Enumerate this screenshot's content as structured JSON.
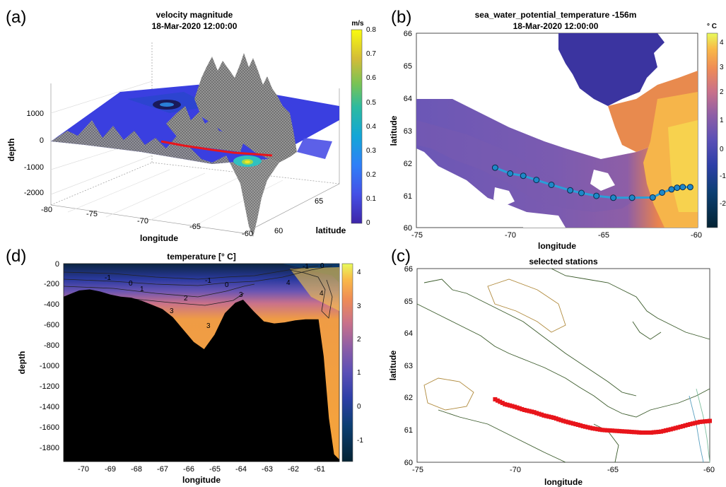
{
  "figure": {
    "background": "#ffffff"
  },
  "colors": {
    "ocean_deep": "#2b2f9e",
    "land": "#ffffff",
    "mesh": "#8c8c8c",
    "section_red": "#e8151b",
    "station_fill": "#1e88c8",
    "station_stroke": "#0b2a4a",
    "bathy": "#000000",
    "contour_land": "#3a5a2a",
    "contour_tan": "#b08a3c"
  },
  "panels": {
    "a": {
      "label": "(a)",
      "title_line1": "velocity magnitude",
      "title_line2": "18-Mar-2020 12:00:00",
      "xlabel": "longitude",
      "ylabel": "latitude",
      "zlabel": "depth",
      "x_ticks": [
        "-80",
        "-75",
        "-70",
        "-65",
        "-60"
      ],
      "y_ticks": [
        "60",
        "65"
      ],
      "z_ticks": [
        "1000",
        "0",
        "-1000",
        "-2000"
      ],
      "colorbar_unit": "m/s",
      "colorbar_ticks": [
        "0.8",
        "0.7",
        "0.6",
        "0.5",
        "0.4",
        "0.3",
        "0.2",
        "0.1",
        "0"
      ]
    },
    "b": {
      "label": "(b)",
      "title_line1": "sea_water_potential_temperature -156m",
      "title_line2": "18-Mar-2020 12:00:00",
      "xlabel": "longitude",
      "ylabel": "latitude",
      "x_ticks": [
        "-75",
        "-70",
        "-65",
        "-60"
      ],
      "y_ticks": [
        "66",
        "65",
        "64",
        "63",
        "62",
        "61",
        "60"
      ],
      "colorbar_unit": "° C",
      "colorbar_ticks": [
        "4",
        "3",
        "2",
        "1",
        "0",
        "-1",
        "-2"
      ]
    },
    "c": {
      "label": "(c)",
      "title": "selected stations",
      "xlabel": "longitude",
      "ylabel": "latitude",
      "x_ticks": [
        "-75",
        "-70",
        "-65",
        "-60"
      ],
      "y_ticks": [
        "66",
        "65",
        "64",
        "63",
        "62",
        "61",
        "60"
      ]
    },
    "d": {
      "label": "(d)",
      "title": "temperature [° C]",
      "xlabel": "longitude",
      "ylabel": "depth",
      "x_ticks": [
        "-70",
        "-69",
        "-68",
        "-67",
        "-66",
        "-65",
        "-64",
        "-63",
        "-62",
        "-61"
      ],
      "y_ticks": [
        "0",
        "-200",
        "-400",
        "-600",
        "-800",
        "-1000",
        "-1200",
        "-1400",
        "-1600",
        "-1800"
      ],
      "colorbar_ticks": [
        "4",
        "3",
        "2",
        "1",
        "0",
        "-1"
      ],
      "contour_labels": [
        "-1",
        "0",
        "1",
        "2",
        "3",
        "3",
        "3",
        "-1",
        "0",
        "4",
        "4",
        "-1",
        "0",
        "3"
      ]
    }
  },
  "chart_data": [
    {
      "type": "surface",
      "panel": "a",
      "title": "velocity magnitude 18-Mar-2020 12:00:00",
      "xlabel": "longitude",
      "ylabel": "latitude",
      "zlabel": "depth",
      "xlim": [
        -80,
        -60
      ],
      "ylim": [
        60,
        66
      ],
      "zlim": [
        -2000,
        1500
      ],
      "colorbar": {
        "label": "m/s",
        "range": [
          0,
          0.8
        ]
      }
    },
    {
      "type": "heatmap",
      "panel": "b",
      "title": "sea_water_potential_temperature -156m 18-Mar-2020 12:00:00",
      "xlabel": "longitude",
      "ylabel": "latitude",
      "xlim": [
        -75,
        -60
      ],
      "ylim": [
        60,
        66
      ],
      "colorbar": {
        "label": "° C",
        "range": [
          -2.5,
          4.2
        ]
      },
      "stations": {
        "lon": [
          -70.8,
          -70.0,
          -69.3,
          -68.6,
          -67.8,
          -66.8,
          -66.2,
          -65.4,
          -64.5,
          -63.5,
          -62.4,
          -61.9,
          -61.4,
          -61.1,
          -60.8,
          -60.4
        ],
        "lat": [
          61.85,
          61.67,
          61.6,
          61.47,
          61.32,
          61.15,
          61.07,
          60.98,
          60.92,
          60.92,
          60.93,
          61.08,
          61.18,
          61.23,
          61.25,
          61.25
        ]
      }
    },
    {
      "type": "scatter",
      "panel": "c",
      "title": "selected stations",
      "xlabel": "longitude",
      "ylabel": "latitude",
      "xlim": [
        -75,
        -60
      ],
      "ylim": [
        60,
        66
      ],
      "stations": {
        "lon": [
          -71.0,
          -70.5,
          -70.0,
          -69.5,
          -69.0,
          -68.5,
          -68.0,
          -67.5,
          -67.0,
          -66.5,
          -66.0,
          -65.5,
          -65.0,
          -64.5,
          -64.0,
          -63.5,
          -63.0,
          -62.5,
          -62.0,
          -61.5,
          -61.0,
          -60.5,
          -60.0
        ],
        "lat": [
          61.95,
          61.8,
          61.72,
          61.62,
          61.55,
          61.45,
          61.38,
          61.28,
          61.2,
          61.12,
          61.05,
          61.0,
          60.98,
          60.96,
          60.94,
          60.92,
          60.92,
          60.95,
          61.02,
          61.1,
          61.18,
          61.25,
          61.28
        ]
      }
    },
    {
      "type": "heatmap",
      "panel": "d",
      "title": "temperature [° C]",
      "xlabel": "longitude",
      "ylabel": "depth",
      "xlim": [
        -70.8,
        -60.2
      ],
      "ylim": [
        -1920,
        0
      ],
      "colorbar": {
        "range": [
          -1.6,
          4.3
        ]
      },
      "bottom_depth": {
        "lon": [
          -70.8,
          -70.5,
          -70.2,
          -69.8,
          -69.4,
          -69.0,
          -68.6,
          -68.2,
          -67.8,
          -67.4,
          -67.0,
          -66.6,
          -66.2,
          -65.8,
          -65.4,
          -65.0,
          -64.6,
          -64.2,
          -63.9,
          -63.5,
          -63.1,
          -62.7,
          -62.3,
          -61.9,
          -61.5,
          -61.0,
          -60.8,
          -60.6,
          -60.4,
          -60.2
        ],
        "depth": [
          -320,
          -290,
          -260,
          -250,
          -270,
          -300,
          -320,
          -330,
          -360,
          -400,
          -440,
          -520,
          -640,
          -760,
          -830,
          -690,
          -480,
          -380,
          -350,
          -460,
          -560,
          -580,
          -570,
          -550,
          -540,
          -540,
          -900,
          -1500,
          -1850,
          -1900
        ]
      }
    }
  ]
}
